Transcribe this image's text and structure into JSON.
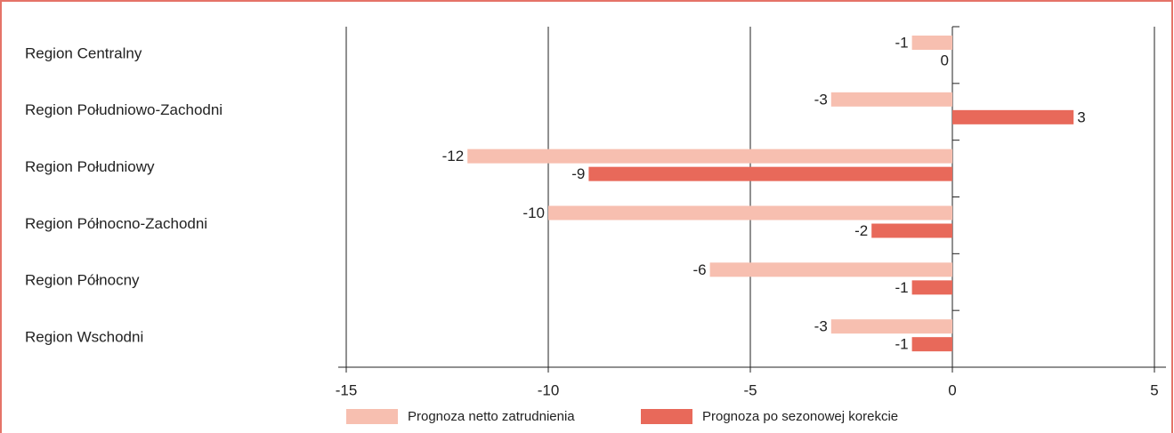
{
  "chart_data": {
    "type": "barh",
    "categories": [
      "Region Centralny",
      "Region Południowo-Zachodni",
      "Region Południowy",
      "Region Północno-Zachodni",
      "Region Północny",
      "Region Wschodni"
    ],
    "series": [
      {
        "name": "Prognoza netto zatrudnienia",
        "color": "#f7bfb0",
        "values": [
          -1,
          -3,
          -12,
          -10,
          -6,
          -3
        ]
      },
      {
        "name": "Prognoza po sezonowej korekcie",
        "color": "#e8695a",
        "values": [
          0,
          3,
          -9,
          -2,
          -1,
          -1
        ]
      }
    ],
    "xlim": [
      -15,
      5
    ],
    "xticks": [
      -15,
      -10,
      -5,
      0,
      5
    ],
    "grid": true
  }
}
